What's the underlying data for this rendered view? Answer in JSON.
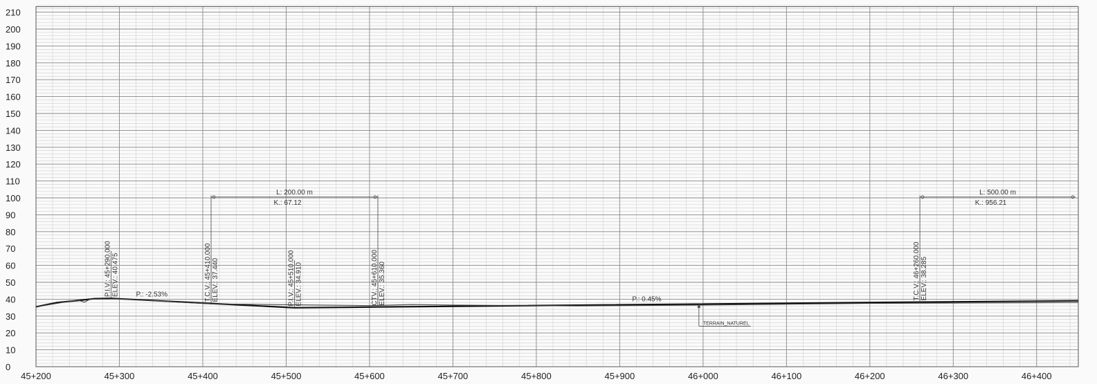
{
  "chart_data": {
    "type": "line",
    "xlabels": [
      "45+200",
      "45+300",
      "45+400",
      "45+500",
      "45+600",
      "45+700",
      "45+800",
      "45+900",
      "46+000",
      "46+100",
      "46+200",
      "46+300",
      "46+400"
    ],
    "ylabels": [
      "0",
      "10",
      "20",
      "30",
      "40",
      "50",
      "60",
      "70",
      "80",
      "90",
      "100",
      "110",
      "120",
      "130",
      "140",
      "150",
      "160",
      "170",
      "180",
      "190",
      "200",
      "210"
    ],
    "xlim": [
      45200,
      46450
    ],
    "ylim": [
      0,
      210
    ],
    "grid": true,
    "series": [
      {
        "role": "grade-line",
        "x": [
          45200,
          45225,
          45250,
          45270,
          45290,
          45410,
          45510,
          45610,
          46260,
          46450
        ],
        "y": [
          35.5,
          38.0,
          39.2,
          40.3,
          40.475,
          37.44,
          34.91,
          35.36,
          38.285,
          39.0
        ]
      },
      {
        "role": "ground",
        "x": [
          45200,
          45250,
          45258,
          45265,
          45300,
          45410,
          45600,
          45650,
          45700,
          45850,
          46000,
          46200,
          46450
        ],
        "y": [
          35.5,
          39.5,
          38.2,
          40.0,
          40.2,
          37.2,
          36.2,
          36.8,
          36.5,
          36.0,
          36.5,
          37.5,
          38.0
        ]
      }
    ],
    "annotations": {
      "pv1": {
        "label": "P.I.V.: 45+290.000",
        "elev": "ELEV.: 40.475"
      },
      "tcv1": {
        "label": "T.C.V.: 45+410.000",
        "elev": "ELEV.: 37.440"
      },
      "piv2": {
        "label": "P.I.V.: 45+510.000",
        "elev": "ELEV.: 34.910"
      },
      "ctv1": {
        "label": "CTV.: 45+610.000",
        "elev": "ELEV.: 35.360"
      },
      "tcv2": {
        "label": "T.C.V.: 46+260.000",
        "elev": "ELEV.: 38.285"
      },
      "curve1": {
        "length": "L: 200.00 m",
        "k": "K.: 67.12"
      },
      "curve2": {
        "length": "L: 500.00 m",
        "k": "K.: 956.21"
      },
      "grade1": "P.: -2.53%",
      "grade2": "P.: 0.45%",
      "terrain": "TERRAIN_NATUREL"
    }
  }
}
